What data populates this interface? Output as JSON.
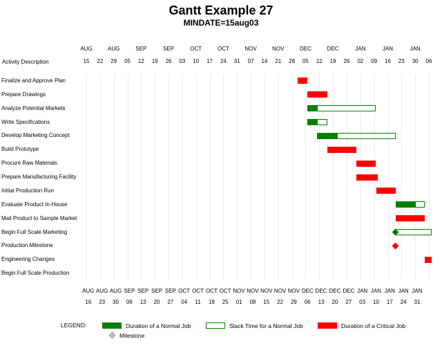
{
  "chart_data": {
    "type": "gantt",
    "title": "Gantt Example 27",
    "subtitle": "MINDATE=15aug03",
    "activity_axis_label": "Activity Description",
    "timeline": {
      "min": "2003-08-15",
      "max": "2004-02-06",
      "tick_interval_days": 7
    },
    "top_axis": {
      "months": [
        "AUG",
        "",
        "AUG",
        "",
        "SEP",
        "",
        "SEP",
        "",
        "OCT",
        "",
        "OCT",
        "",
        "NOV",
        "",
        "NOV",
        "",
        "DEC",
        "",
        "DEC",
        "",
        "JAN",
        "",
        "JAN",
        "",
        "JAN",
        ""
      ],
      "days": [
        "15",
        "22",
        "29",
        "05",
        "12",
        "19",
        "26",
        "03",
        "10",
        "17",
        "24",
        "31",
        "07",
        "14",
        "21",
        "28",
        "05",
        "12",
        "19",
        "26",
        "02",
        "09",
        "16",
        "23",
        "30",
        "06"
      ]
    },
    "bottom_axis": {
      "start_offset_days": 1,
      "months": [
        "AUG",
        "AUG",
        "AUG",
        "SEP",
        "SEP",
        "SEP",
        "SEP",
        "OCT",
        "OCT",
        "OCT",
        "OCT",
        "NOV",
        "NOV",
        "NOV",
        "NOV",
        "NOV",
        "DEC",
        "DEC",
        "DEC",
        "DEC",
        "JAN",
        "JAN",
        "JAN",
        "JAN",
        "JAN"
      ],
      "days": [
        "16",
        "23",
        "30",
        "06",
        "13",
        "20",
        "27",
        "04",
        "11",
        "18",
        "25",
        "01",
        "08",
        "15",
        "22",
        "29",
        "06",
        "13",
        "20",
        "27",
        "03",
        "10",
        "17",
        "24",
        "31"
      ]
    },
    "tasks": [
      {
        "label": "Finalize and Approve Plan",
        "segments": [
          {
            "kind": "critical",
            "start": "2003-12-01",
            "end": "2003-12-06"
          }
        ]
      },
      {
        "label": "Prepare Drawings",
        "segments": [
          {
            "kind": "critical",
            "start": "2003-12-06",
            "end": "2003-12-16"
          }
        ]
      },
      {
        "label": "Analyze Potential Markets",
        "segments": [
          {
            "kind": "normal",
            "start": "2003-12-06",
            "end": "2003-12-11"
          },
          {
            "kind": "slack",
            "start": "2003-12-11",
            "end": "2004-01-10"
          }
        ]
      },
      {
        "label": "Write Specifications",
        "segments": [
          {
            "kind": "normal",
            "start": "2003-12-06",
            "end": "2003-12-11"
          },
          {
            "kind": "slack",
            "start": "2003-12-11",
            "end": "2003-12-16"
          }
        ]
      },
      {
        "label": "Develop Marketing Concept",
        "segments": [
          {
            "kind": "normal",
            "start": "2003-12-11",
            "end": "2003-12-21"
          },
          {
            "kind": "slack",
            "start": "2003-12-21",
            "end": "2004-01-20"
          }
        ]
      },
      {
        "label": "Build Prototype",
        "segments": [
          {
            "kind": "critical",
            "start": "2003-12-16",
            "end": "2003-12-31"
          }
        ]
      },
      {
        "label": "Procure Raw Materials",
        "segments": [
          {
            "kind": "critical",
            "start": "2003-12-31",
            "end": "2004-01-10"
          }
        ]
      },
      {
        "label": "Prepare Manufacturing Facility",
        "segments": [
          {
            "kind": "critical",
            "start": "2003-12-31",
            "end": "2004-01-11"
          }
        ]
      },
      {
        "label": "Initial Production Run",
        "segments": [
          {
            "kind": "critical",
            "start": "2004-01-10",
            "end": "2004-01-20"
          }
        ]
      },
      {
        "label": "Evaluate Product In-House",
        "segments": [
          {
            "kind": "normal",
            "start": "2004-01-20",
            "end": "2004-01-30"
          },
          {
            "kind": "slack",
            "start": "2004-01-30",
            "end": "2004-02-04"
          }
        ]
      },
      {
        "label": "Mail Product to Sample Market",
        "segments": [
          {
            "kind": "critical",
            "start": "2004-01-20",
            "end": "2004-02-04"
          }
        ]
      },
      {
        "label": "Begin Full Scale Marketing",
        "segments": [
          {
            "kind": "slack",
            "start": "2004-01-20",
            "end": "2004-02-09"
          },
          {
            "kind": "milestone_normal",
            "at": "2004-01-20"
          }
        ]
      },
      {
        "label": "Production Milestone",
        "segments": [
          {
            "kind": "milestone_critical",
            "at": "2004-01-20"
          }
        ]
      },
      {
        "label": "Engineering Changes",
        "segments": [
          {
            "kind": "critical",
            "start": "2004-02-04",
            "end": "2004-02-09"
          }
        ]
      },
      {
        "label": "Begin Full Scale Production",
        "segments": []
      }
    ],
    "legend": {
      "label": "LEGEND:",
      "entries": [
        {
          "kind": "normal",
          "label": "Duration of a Normal Job"
        },
        {
          "kind": "slack",
          "label": "Slack Time for a Normal Job"
        },
        {
          "kind": "critical",
          "label": "Duration of a Critical Job"
        },
        {
          "kind": "milestone",
          "label": "Milestone"
        }
      ]
    },
    "colors": {
      "normal": "#008000",
      "critical": "#ff0000",
      "slack_fill": "#ffffff",
      "slack_border": "#008000",
      "milestone_legend": "#c0c0c0"
    }
  }
}
